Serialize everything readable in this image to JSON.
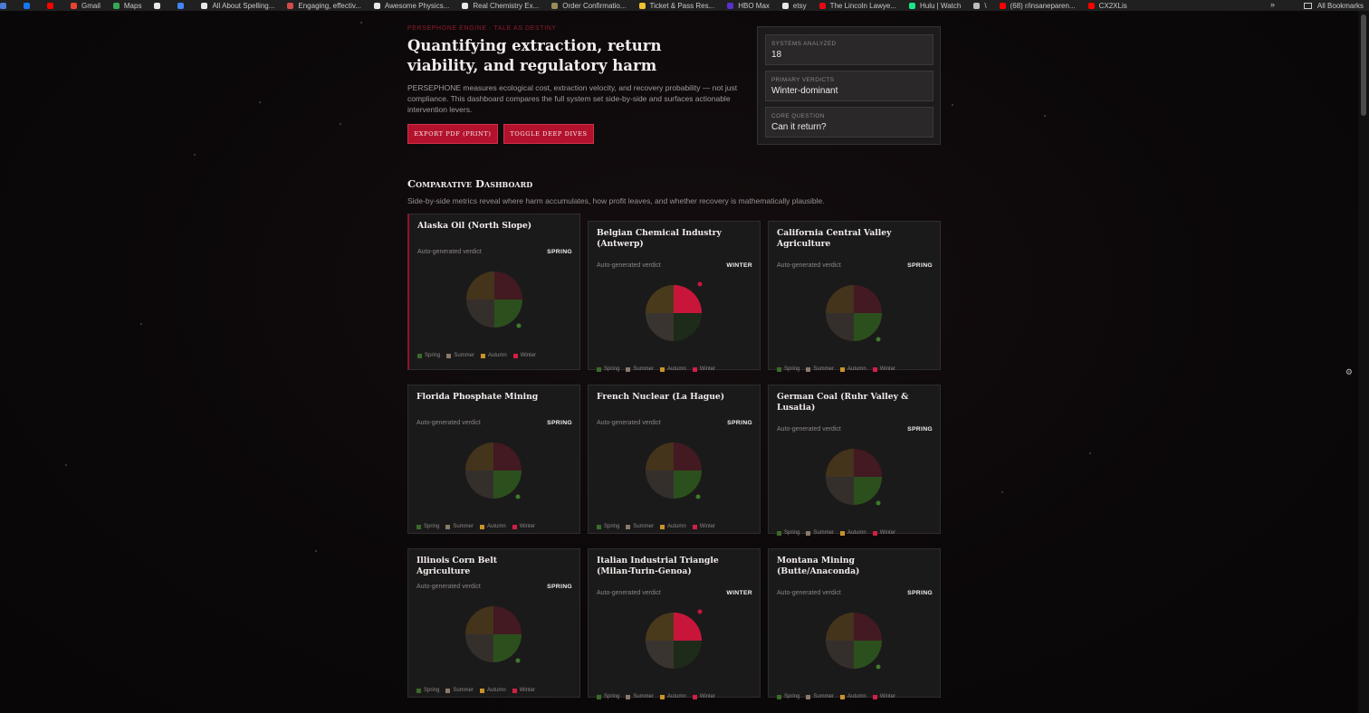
{
  "bookmarks": [
    {
      "label": "",
      "color": "#4b7bd9"
    },
    {
      "label": "",
      "color": "#1877f2"
    },
    {
      "label": "",
      "color": "#ff0000"
    },
    {
      "label": "Gmail",
      "color": "#ea4335"
    },
    {
      "label": "Maps",
      "color": "#34a853"
    },
    {
      "label": "",
      "color": "#e8e8e8"
    },
    {
      "label": "",
      "color": "#4285f4"
    },
    {
      "label": "All About Spelling...",
      "color": "#e8e8e8"
    },
    {
      "label": "Engaging, effectiv...",
      "color": "#d14b4b"
    },
    {
      "label": "Awesome Physics...",
      "color": "#e8e8e8"
    },
    {
      "label": "Real Chemistry Ex...",
      "color": "#e8e8e8"
    },
    {
      "label": "Order Confirmatio...",
      "color": "#9a8b5a"
    },
    {
      "label": "Ticket & Pass Res...",
      "color": "#f2c230"
    },
    {
      "label": "HBO Max",
      "color": "#5b2fc9"
    },
    {
      "label": "etsy",
      "color": "#e8e8e8"
    },
    {
      "label": "The Lincoln Lawye...",
      "color": "#e50914"
    },
    {
      "label": "Hulu | Watch",
      "color": "#1ce783"
    },
    {
      "label": "\\",
      "color": "#bdbdbd"
    },
    {
      "label": "(68) r/insaneparen...",
      "color": "#ff0000"
    },
    {
      "label": "CX2XLis",
      "color": "#ff0000"
    }
  ],
  "bookmarks_overflow": "»",
  "all_bookmarks": "All Bookmarks",
  "kicker": "PERSEPHONE ENGINE · TALE AS DESTINY",
  "title": "Quantifying extraction, return viability, and regulatory harm",
  "lede": "PERSEPHONE measures ecological cost, extraction velocity, and recovery probability — not just compliance. This dashboard compares the full system set side-by-side and surfaces actionable intervention levers.",
  "buttons": {
    "export": "Export PDF (print)",
    "toggle": "Toggle deep dives"
  },
  "stats": [
    {
      "label": "Systems analyzed",
      "value": "18"
    },
    {
      "label": "Primary verdicts",
      "value": "Winter-dominant"
    },
    {
      "label": "Core question",
      "value": "Can it return?"
    }
  ],
  "section": {
    "title": "Comparative Dashboard",
    "subtitle": "Side-by-side metrics reveal where harm accumulates, how profit leaves, and whether recovery is mathematically plausible."
  },
  "colors": {
    "spring": "#2f5a1f",
    "summer": "#3a3430",
    "autumn": "#4a3a1c",
    "winter_dim": "#4a1a24",
    "winter_hot": "#c8163b",
    "spring_legend": "#3a6a2a",
    "summer_legend": "#8a7a6a",
    "autumn_legend": "#c8922a",
    "winter_legend": "#d11f45"
  },
  "legend": [
    "Spring",
    "Summer",
    "Autumn",
    "Winter"
  ],
  "cards": [
    {
      "title": "Alaska Oil (North Slope)",
      "agv": "Auto-generated verdict",
      "verdict": "SPRING"
    },
    {
      "title": "Belgian Chemical Industry (Antwerp)",
      "agv": "Auto-generated verdict",
      "verdict": "WINTER"
    },
    {
      "title": "California Central Valley Agriculture",
      "agv": "Auto-generated verdict",
      "verdict": "SPRING"
    },
    {
      "title": "Florida Phosphate Mining",
      "agv": "Auto-generated verdict",
      "verdict": "SPRING"
    },
    {
      "title": "French Nuclear (La Hague)",
      "agv": "Auto-generated verdict",
      "verdict": "SPRING"
    },
    {
      "title": "German Coal (Ruhr Valley & Lusatia)",
      "agv": "Auto-generated verdict",
      "verdict": "SPRING"
    },
    {
      "title": "Illinois Corn Belt Agriculture",
      "agv": "Auto-generated verdict",
      "verdict": "SPRING"
    },
    {
      "title": "Italian Industrial Triangle (Milan-Turin-Genoa)",
      "agv": "Auto-generated verdict",
      "verdict": "WINTER"
    },
    {
      "title": "Montana Mining (Butte/Anaconda)",
      "agv": "Auto-generated verdict",
      "verdict": "SPRING"
    }
  ]
}
